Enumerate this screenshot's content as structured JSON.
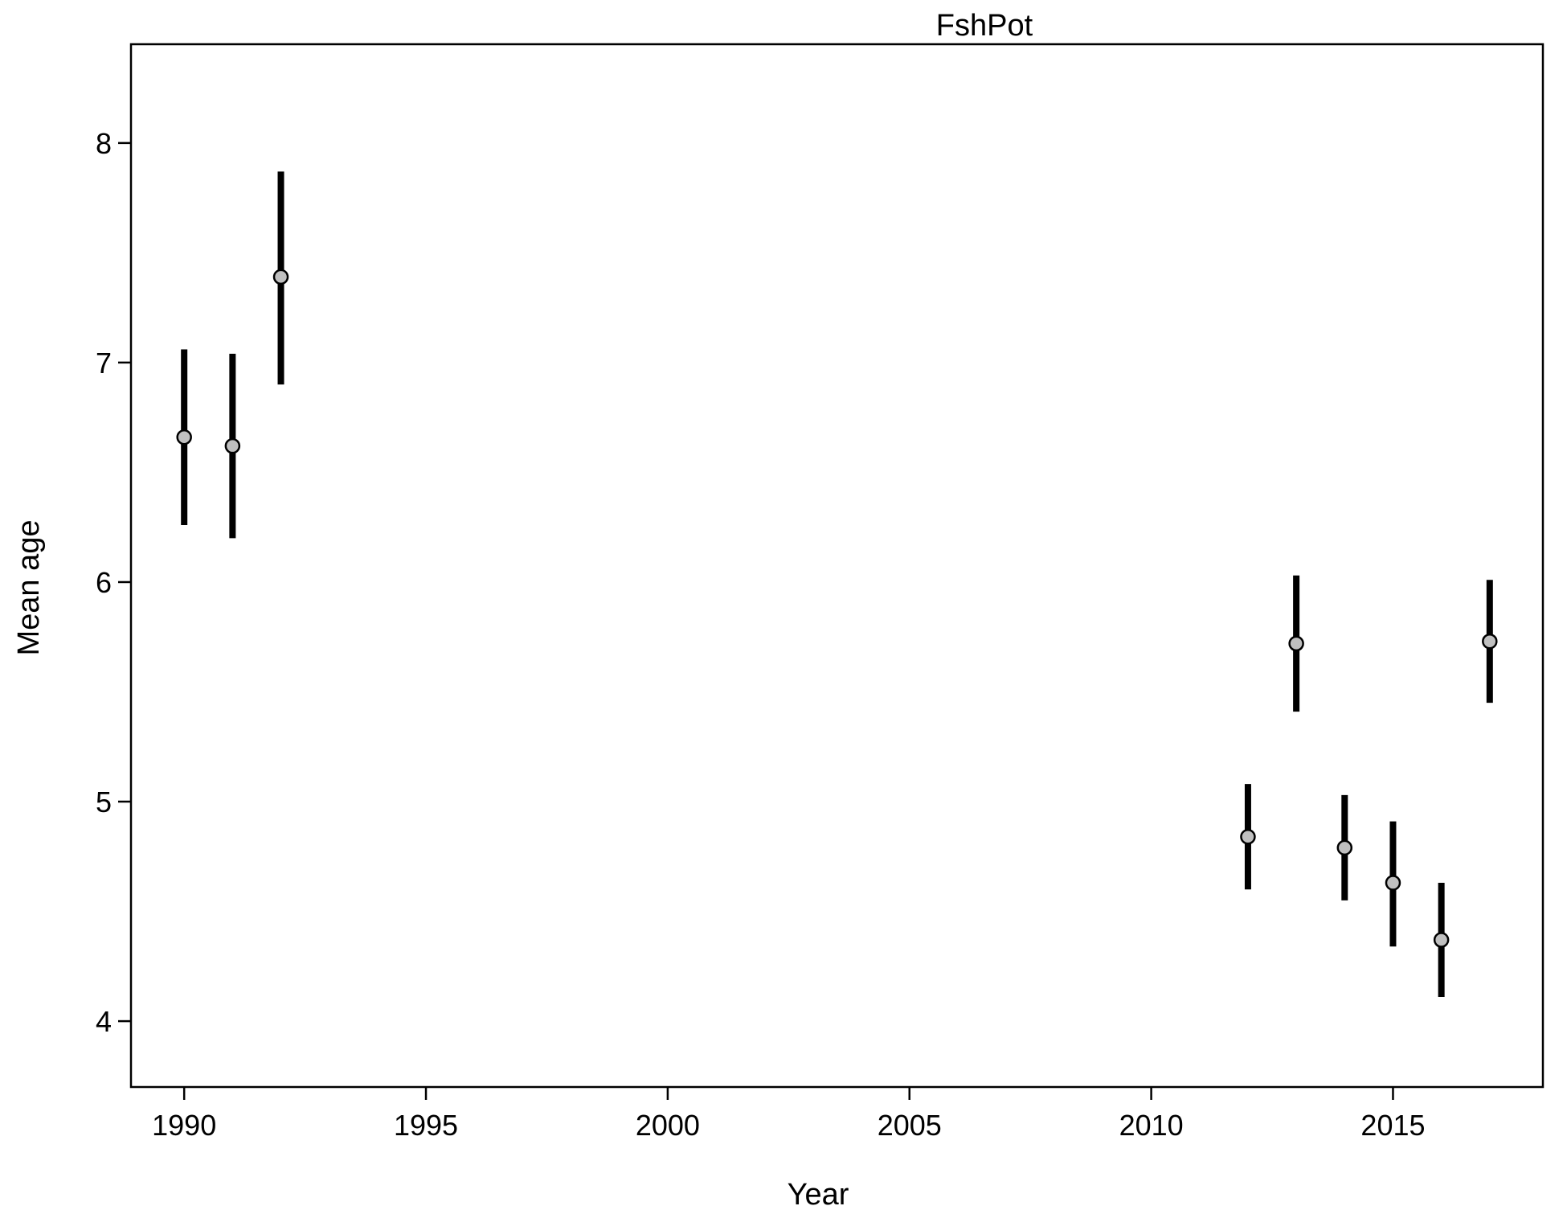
{
  "chart_data": {
    "type": "scatter",
    "title": "FshPot",
    "xlabel": "Year",
    "ylabel": "Mean age",
    "xlim": [
      1988.9,
      2018.1
    ],
    "ylim": [
      3.7,
      8.45
    ],
    "x_ticks": [
      1990,
      1995,
      2000,
      2005,
      2010,
      2015
    ],
    "y_ticks": [
      4,
      5,
      6,
      7,
      8
    ],
    "grid": false,
    "legend": "none",
    "colors": {
      "point_fill": "#c0c0c0",
      "point_edge": "#000000",
      "error_bar": "#000000",
      "frame": "#000000"
    },
    "points": [
      {
        "year": 1990,
        "mean": 6.66,
        "lower": 6.26,
        "upper": 7.06
      },
      {
        "year": 1991,
        "mean": 6.62,
        "lower": 6.2,
        "upper": 7.04
      },
      {
        "year": 1992,
        "mean": 7.39,
        "lower": 6.9,
        "upper": 7.87
      },
      {
        "year": 2012,
        "mean": 4.84,
        "lower": 4.6,
        "upper": 5.08
      },
      {
        "year": 2013,
        "mean": 5.72,
        "lower": 5.41,
        "upper": 6.03
      },
      {
        "year": 2014,
        "mean": 4.79,
        "lower": 4.55,
        "upper": 5.03
      },
      {
        "year": 2015,
        "mean": 4.63,
        "lower": 4.34,
        "upper": 4.91
      },
      {
        "year": 2016,
        "mean": 4.37,
        "lower": 4.11,
        "upper": 4.63
      },
      {
        "year": 2017,
        "mean": 5.73,
        "lower": 5.45,
        "upper": 6.01
      }
    ]
  }
}
